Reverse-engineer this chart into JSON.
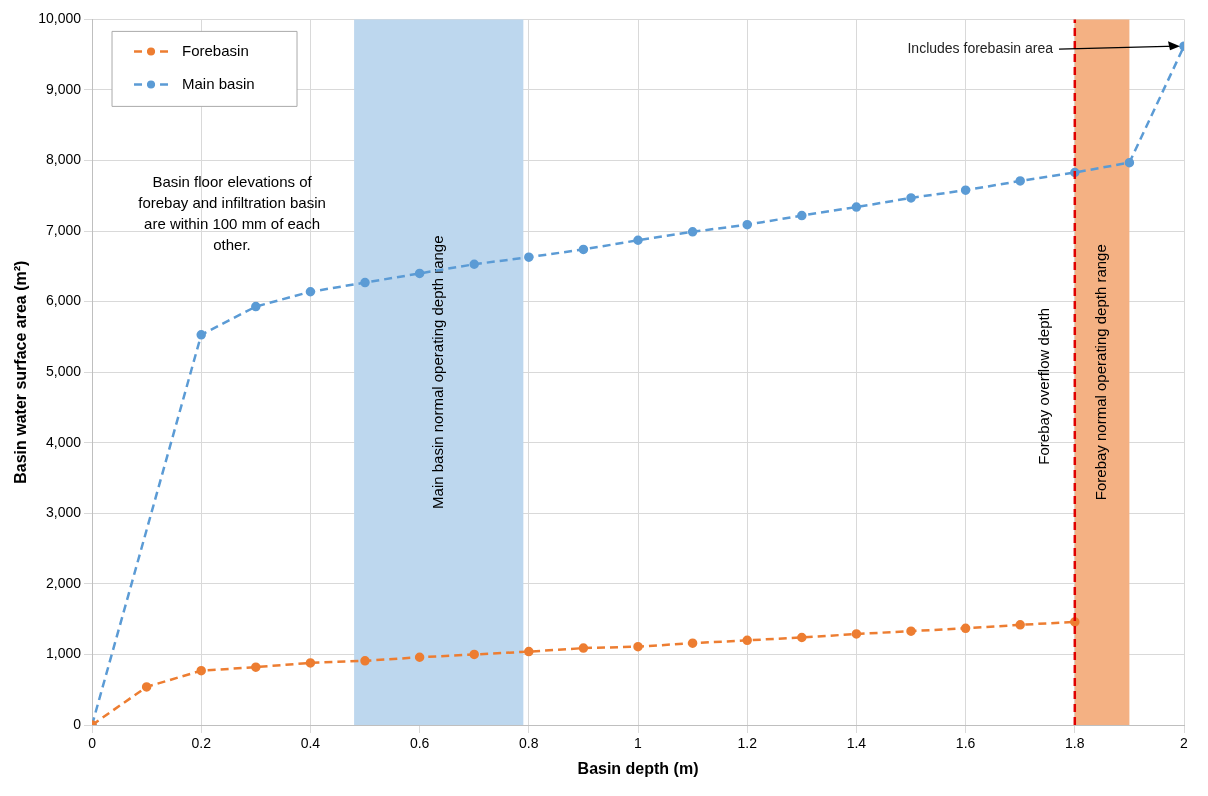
{
  "chart_data": {
    "type": "line",
    "xlabel": "Basin depth (m)",
    "ylabel": "Basin water surface area (m²)",
    "xlim": [
      0,
      2
    ],
    "xticks": [
      0,
      0.2,
      0.4,
      0.6,
      0.8,
      1,
      1.2,
      1.4,
      1.6,
      1.8,
      2
    ],
    "ylim": [
      0,
      10000
    ],
    "yticks": [
      {
        "value": 0,
        "label": "0"
      },
      {
        "value": 1000,
        "label": "1,000"
      },
      {
        "value": 2000,
        "label": "2,000"
      },
      {
        "value": 3000,
        "label": "3,000"
      },
      {
        "value": 4000,
        "label": "4,000"
      },
      {
        "value": 5000,
        "label": "5,000"
      },
      {
        "value": 6000,
        "label": "6,000"
      },
      {
        "value": 7000,
        "label": "7,000"
      },
      {
        "value": 8000,
        "label": "8,000"
      },
      {
        "value": 9000,
        "label": "9,000"
      },
      {
        "value": 10000,
        "label": "10,000"
      }
    ],
    "series": [
      {
        "name": "Forebasin",
        "color": "#ed7d31",
        "x": [
          0,
          0.1,
          0.2,
          0.3,
          0.4,
          0.5,
          0.6,
          0.7,
          0.8,
          0.9,
          1,
          1.1,
          1.2,
          1.3,
          1.4,
          1.5,
          1.6,
          1.7,
          1.8
        ],
        "values": [
          0,
          540,
          770,
          820,
          880,
          910,
          960,
          1000,
          1040,
          1090,
          1110,
          1160,
          1200,
          1240,
          1290,
          1330,
          1370,
          1420,
          1460
        ]
      },
      {
        "name": "Main basin",
        "color": "#5b9bd5",
        "x": [
          0,
          0.2,
          0.3,
          0.4,
          0.5,
          0.6,
          0.7,
          0.8,
          0.9,
          1,
          1.1,
          1.2,
          1.3,
          1.4,
          1.5,
          1.6,
          1.7,
          1.8,
          1.9,
          2
        ],
        "values": [
          0,
          5530,
          5930,
          6140,
          6270,
          6400,
          6530,
          6630,
          6740,
          6870,
          6990,
          7090,
          7220,
          7340,
          7470,
          7580,
          7710,
          7830,
          7970,
          9620
        ]
      }
    ],
    "bands": [
      {
        "axis": "x",
        "from": 0.48,
        "to": 0.79,
        "label": "Main basin normal operating depth range",
        "color": "#bdd7ee"
      },
      {
        "axis": "x",
        "from": 1.8,
        "to": 1.9,
        "label": "Forebay normal operating depth range",
        "color": "#f4b183"
      }
    ],
    "ref_lines": [
      {
        "axis": "x",
        "value": 1.8,
        "label": "Forebay overflow depth",
        "color": "#e00000",
        "line_style": "dashed"
      }
    ],
    "annotations": [
      "Basin floor elevations of forebay and infiltration basin are within 100 mm of each other.",
      {
        "text": "Includes forebasin area",
        "x": 2,
        "y": 9620
      }
    ],
    "grid": true,
    "legend": "top left",
    "marker": "circle",
    "line_style": "dashed"
  }
}
